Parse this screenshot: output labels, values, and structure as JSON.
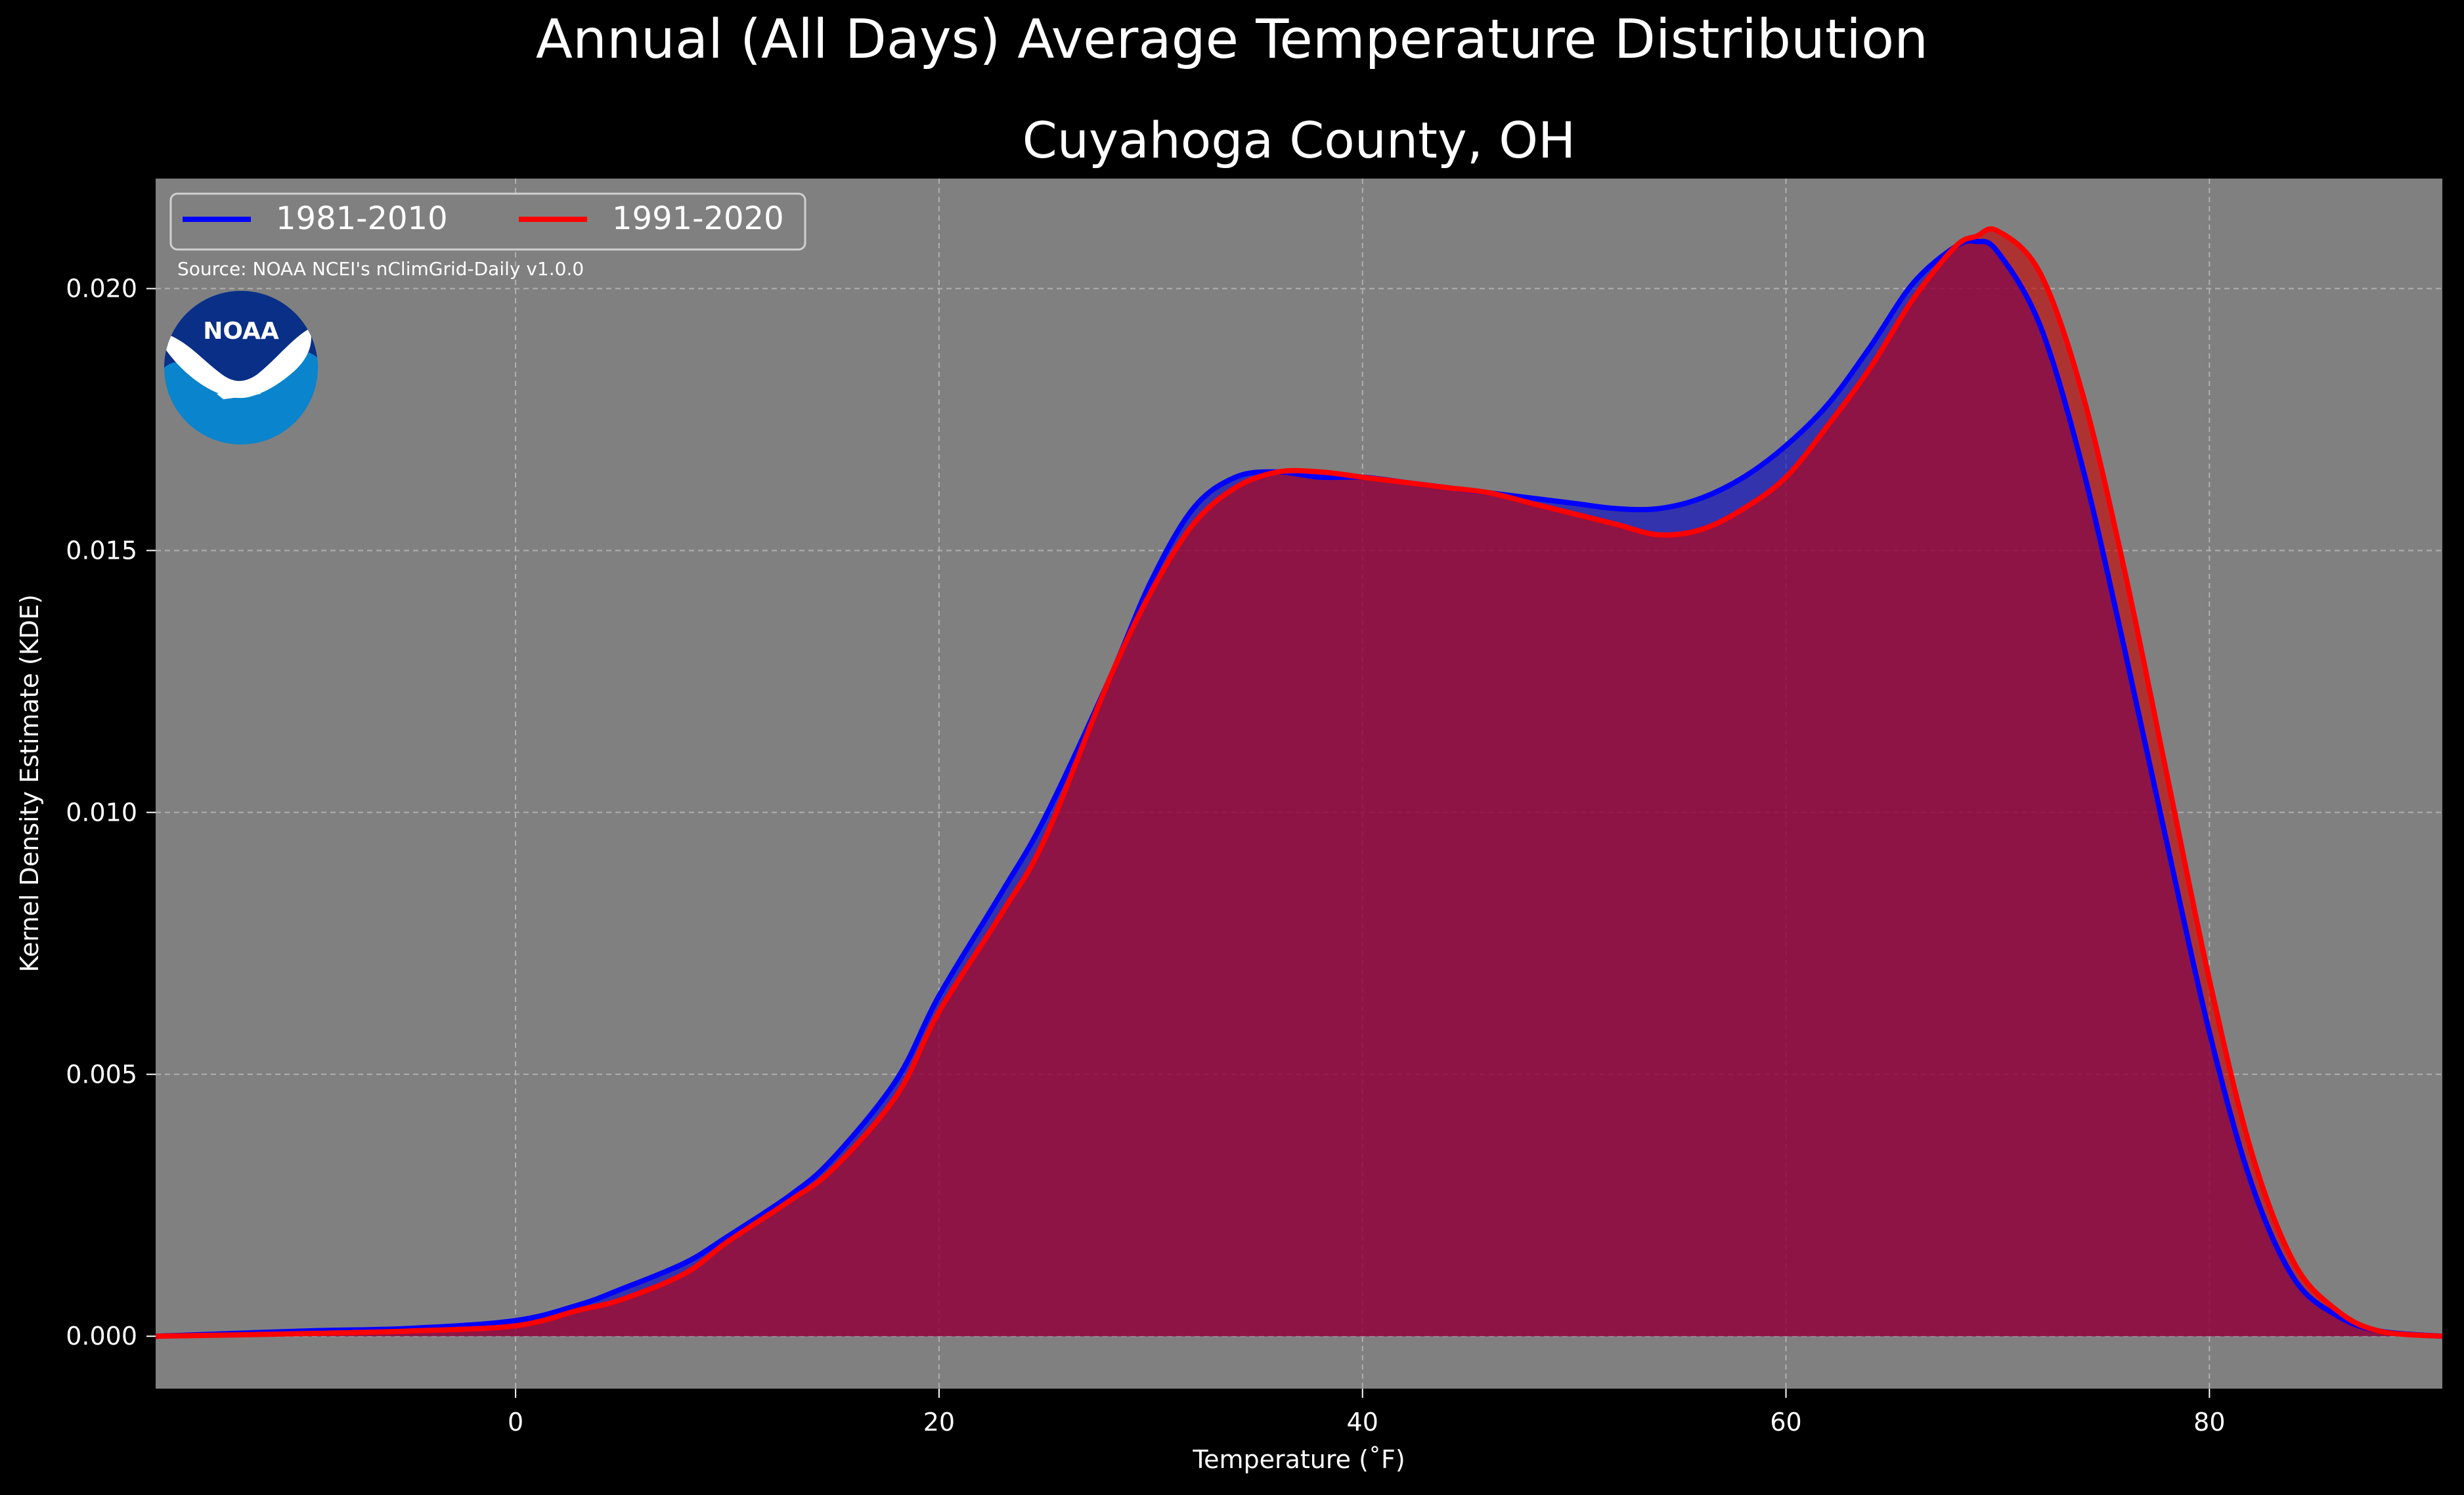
{
  "chart_data": {
    "type": "area",
    "suptitle": "Annual (All Days) Average Temperature Distribution",
    "title": "Cuyahoga County, OH",
    "xlabel": "Temperature ($^\\circ$F)",
    "xlabel_display": "Temperature (˚F)",
    "ylabel": "Kernel Density Estimate (KDE)",
    "xlim": [
      -17,
      91
    ],
    "ylim": [
      -0.001,
      0.0221
    ],
    "xticks": [
      0,
      20,
      40,
      60,
      80
    ],
    "xtick_labels": [
      "0",
      "20",
      "40",
      "60",
      "80"
    ],
    "yticks": [
      0.0,
      0.005,
      0.01,
      0.015,
      0.02
    ],
    "ytick_labels": [
      "0.000",
      "0.005",
      "0.010",
      "0.015",
      "0.020"
    ],
    "grid": true,
    "legend_position": "top-left",
    "source_note": "Source: NOAA NCEI's nClimGrid-Daily v1.0.0",
    "logo_text": "NOAA",
    "colors": {
      "background": "#000000",
      "plot_bg": "#808080",
      "series_1981_2010": "#0000ff",
      "series_1991_2020": "#ff0000",
      "fill_1981_2010": "#0000cc",
      "fill_1991_2020": "#cc0000",
      "text": "#ffffff",
      "grid": "#b0b0b0",
      "logo_dark": "#0a2f87",
      "logo_light": "#0a84cc"
    },
    "series": [
      {
        "name": "1981-2010",
        "color": "#0000ff",
        "x": [
          -17,
          -10,
          -5,
          0,
          3,
          5,
          8,
          10,
          13,
          15,
          18,
          20,
          23,
          25,
          28,
          30,
          32,
          34,
          36,
          38,
          40,
          42,
          44,
          46,
          48,
          50,
          52,
          54,
          56,
          58,
          60,
          62,
          64,
          66,
          68,
          69,
          70,
          72,
          74,
          76,
          78,
          80,
          82,
          84,
          86,
          88,
          91
        ],
        "y": [
          0.0,
          0.0001,
          0.00015,
          0.0003,
          0.0006,
          0.0009,
          0.0014,
          0.0019,
          0.0027,
          0.0034,
          0.0049,
          0.0065,
          0.0085,
          0.0099,
          0.0125,
          0.0144,
          0.0158,
          0.0164,
          0.0165,
          0.0164,
          0.0164,
          0.0163,
          0.0162,
          0.0161,
          0.016,
          0.0159,
          0.0158,
          0.0158,
          0.016,
          0.0164,
          0.017,
          0.0178,
          0.0189,
          0.0201,
          0.0208,
          0.0209,
          0.0207,
          0.0193,
          0.0166,
          0.0131,
          0.0094,
          0.0058,
          0.0029,
          0.0011,
          0.0004,
          0.0001,
          0.0
        ]
      },
      {
        "name": "1991-2020",
        "color": "#ff0000",
        "x": [
          -17,
          -10,
          -5,
          0,
          3,
          5,
          8,
          10,
          13,
          15,
          18,
          20,
          23,
          25,
          28,
          30,
          32,
          34,
          36,
          38,
          40,
          42,
          44,
          46,
          48,
          50,
          52,
          54,
          56,
          58,
          60,
          62,
          64,
          66,
          68,
          69,
          70,
          72,
          74,
          76,
          78,
          80,
          82,
          84,
          86,
          88,
          91
        ],
        "y": [
          0.0,
          5e-05,
          0.0001,
          0.0002,
          0.0005,
          0.0007,
          0.0012,
          0.0018,
          0.0026,
          0.0032,
          0.0046,
          0.0062,
          0.0081,
          0.0095,
          0.0125,
          0.0142,
          0.0155,
          0.0162,
          0.0165,
          0.0165,
          0.0164,
          0.0163,
          0.0162,
          0.0161,
          0.0159,
          0.0157,
          0.0155,
          0.0153,
          0.0154,
          0.0158,
          0.0164,
          0.0174,
          0.0185,
          0.0198,
          0.0208,
          0.021,
          0.0211,
          0.0203,
          0.018,
          0.0146,
          0.0107,
          0.0068,
          0.0035,
          0.0014,
          0.0005,
          0.0001,
          0.0
        ]
      }
    ]
  }
}
